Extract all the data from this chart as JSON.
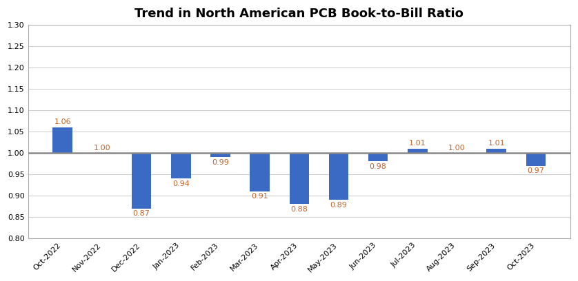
{
  "title": "Trend in North American PCB Book-to-Bill Ratio",
  "categories": [
    "Oct-2022",
    "Nov-2022",
    "Dec-2022",
    "Jan-2023",
    "Feb-2023",
    "Mar-2023",
    "Apr-2023",
    "May-2023",
    "Jun-2023",
    "Jul-2023",
    "Aug-2023",
    "Sep-2023",
    "Oct-2023"
  ],
  "values": [
    1.06,
    1.0,
    0.87,
    0.94,
    0.99,
    0.91,
    0.88,
    0.89,
    0.98,
    1.01,
    1.0,
    1.01,
    0.97
  ],
  "bar_color": "#3B6AC4",
  "label_color": "#C0622A",
  "refline_color": "#888888",
  "ylim": [
    0.8,
    1.3
  ],
  "yticks": [
    0.8,
    0.85,
    0.9,
    0.95,
    1.0,
    1.05,
    1.1,
    1.15,
    1.2,
    1.25,
    1.3
  ],
  "title_fontsize": 13,
  "label_fontsize": 8,
  "tick_fontsize": 8,
  "background_color": "#ffffff",
  "grid_color": "#cccccc",
  "bar_width": 0.5
}
